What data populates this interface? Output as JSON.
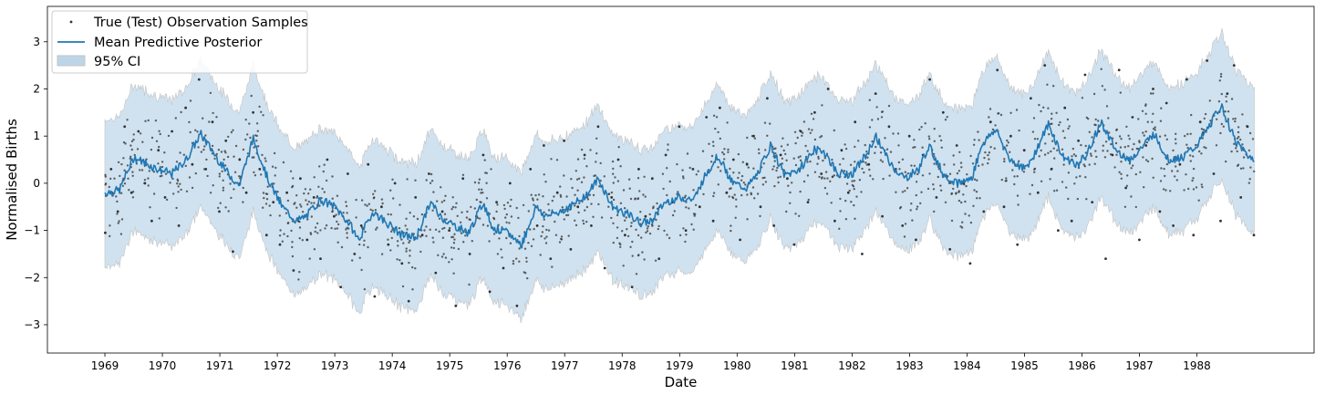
{
  "chart_data": {
    "type": "line",
    "title": "",
    "xlabel": "Date",
    "ylabel": "Normalised Births",
    "x_range": [
      "1969-01-01",
      "1988-12-31"
    ],
    "xlim": [
      "1968-01-01",
      "1990-01-15"
    ],
    "ylim": [
      -3.6,
      3.75
    ],
    "xticks": [
      "1969",
      "1970",
      "1971",
      "1972",
      "1973",
      "1974",
      "1975",
      "1976",
      "1977",
      "1978",
      "1979",
      "1980",
      "1981",
      "1982",
      "1983",
      "1984",
      "1985",
      "1986",
      "1987",
      "1988"
    ],
    "yticks": [
      -3,
      -2,
      -1,
      0,
      1,
      2,
      3
    ],
    "grid": false,
    "legend_position": "top-left",
    "colors": {
      "mean": "#1f77b4",
      "ci_fill": "#bcd6e8",
      "ci_edge": "#c4c4c4",
      "points": "#333333"
    },
    "legend": [
      {
        "label": "True (Test) Observation Samples",
        "kind": "points"
      },
      {
        "label": "Mean Predictive Posterior",
        "kind": "line"
      },
      {
        "label": "95% CI",
        "kind": "band"
      }
    ],
    "series": [
      {
        "name": "Mean Predictive Posterior",
        "x": [
          "1969-01",
          "1969-04",
          "1969-07",
          "1969-09",
          "1969-12",
          "1970-03",
          "1970-06",
          "1970-09",
          "1970-12",
          "1971-02",
          "1971-05",
          "1971-08",
          "1971-11",
          "1972-02",
          "1972-05",
          "1972-07",
          "1972-10",
          "1973-01",
          "1973-04",
          "1973-06",
          "1973-09",
          "1973-12",
          "1974-03",
          "1974-06",
          "1974-09",
          "1974-11",
          "1975-02",
          "1975-05",
          "1975-08",
          "1975-10",
          "1976-01",
          "1976-04",
          "1976-07",
          "1976-09",
          "1976-12",
          "1977-03",
          "1977-06",
          "1977-08",
          "1977-11",
          "1978-02",
          "1978-05",
          "1978-07",
          "1978-10",
          "1979-01",
          "1979-04",
          "1979-06",
          "1979-09",
          "1979-12",
          "1980-03",
          "1980-05",
          "1980-08",
          "1980-11",
          "1981-02",
          "1981-05",
          "1981-07",
          "1981-10",
          "1982-01",
          "1982-04",
          "1982-06",
          "1982-09",
          "1982-12",
          "1983-03",
          "1983-05",
          "1983-08",
          "1983-11",
          "1984-02",
          "1984-04",
          "1984-07",
          "1984-10",
          "1985-01",
          "1985-03",
          "1985-06",
          "1985-09",
          "1985-12",
          "1986-02",
          "1986-05",
          "1986-08",
          "1986-11",
          "1987-01",
          "1987-04",
          "1987-07",
          "1987-10",
          "1988-01",
          "1988-03",
          "1988-06",
          "1988-09",
          "1988-12"
        ],
        "values": [
          -0.2,
          -0.15,
          0.55,
          0.45,
          0.3,
          0.2,
          0.5,
          1.05,
          0.6,
          0.3,
          -0.05,
          0.95,
          0.1,
          -0.5,
          -0.8,
          -0.7,
          -0.35,
          -0.5,
          -0.85,
          -1.2,
          -0.6,
          -0.85,
          -1.1,
          -1.15,
          -0.4,
          -0.7,
          -0.9,
          -1.05,
          -0.4,
          -0.95,
          -1.05,
          -1.3,
          -0.5,
          -0.7,
          -0.6,
          -0.45,
          -0.2,
          0.1,
          -0.5,
          -0.65,
          -0.85,
          -0.8,
          -0.4,
          -0.3,
          -0.35,
          0.1,
          0.6,
          0.0,
          -0.1,
          0.15,
          0.8,
          0.15,
          0.3,
          0.7,
          0.7,
          0.2,
          0.2,
          0.6,
          1.0,
          0.4,
          0.1,
          0.3,
          0.8,
          0.2,
          0.0,
          0.1,
          0.8,
          1.15,
          0.5,
          0.3,
          0.6,
          1.25,
          0.55,
          0.4,
          0.6,
          1.3,
          0.7,
          0.5,
          0.7,
          1.05,
          0.5,
          0.55,
          0.8,
          1.1,
          1.65,
          0.9,
          0.55
        ]
      },
      {
        "name": "95% CI lower",
        "values": [
          -1.75,
          -1.7,
          -1.0,
          -1.1,
          -1.25,
          -1.35,
          -1.05,
          -0.5,
          -0.95,
          -1.25,
          -1.6,
          -0.6,
          -1.45,
          -2.05,
          -2.35,
          -2.25,
          -1.9,
          -2.05,
          -2.4,
          -2.75,
          -2.15,
          -2.4,
          -2.65,
          -2.7,
          -1.95,
          -2.25,
          -2.45,
          -2.6,
          -1.95,
          -2.5,
          -2.6,
          -2.85,
          -2.05,
          -2.25,
          -2.15,
          -2.0,
          -1.75,
          -1.45,
          -2.05,
          -2.2,
          -2.4,
          -2.35,
          -1.95,
          -1.85,
          -1.9,
          -1.45,
          -0.95,
          -1.55,
          -1.65,
          -1.4,
          -0.75,
          -1.4,
          -1.25,
          -0.85,
          -0.85,
          -1.35,
          -1.35,
          -0.95,
          -0.55,
          -1.15,
          -1.45,
          -1.25,
          -0.75,
          -1.35,
          -1.55,
          -1.45,
          -0.75,
          -0.4,
          -1.05,
          -1.25,
          -0.95,
          -0.3,
          -1.0,
          -1.15,
          -0.95,
          -0.25,
          -0.85,
          -1.05,
          -0.85,
          -0.5,
          -1.05,
          -1.0,
          -0.75,
          -0.45,
          0.1,
          -0.65,
          -1.0
        ]
      },
      {
        "name": "95% CI upper",
        "values": [
          1.35,
          1.4,
          2.1,
          2.0,
          1.85,
          1.75,
          2.05,
          2.6,
          2.15,
          1.85,
          1.5,
          2.5,
          1.65,
          1.05,
          0.75,
          0.85,
          1.2,
          1.05,
          0.7,
          0.35,
          0.95,
          0.7,
          0.45,
          0.4,
          1.15,
          0.85,
          0.65,
          0.5,
          1.15,
          0.6,
          0.5,
          0.25,
          1.05,
          0.85,
          0.95,
          1.1,
          1.35,
          1.65,
          1.05,
          0.9,
          0.7,
          0.75,
          1.15,
          1.25,
          1.2,
          1.65,
          2.15,
          1.55,
          1.45,
          1.7,
          2.35,
          1.7,
          1.85,
          2.25,
          2.25,
          1.75,
          1.75,
          2.15,
          2.55,
          1.95,
          1.65,
          1.85,
          2.35,
          1.75,
          1.55,
          1.65,
          2.35,
          2.7,
          2.05,
          1.85,
          2.15,
          2.8,
          2.1,
          1.95,
          2.15,
          2.85,
          2.25,
          2.05,
          2.25,
          2.6,
          2.05,
          2.1,
          2.35,
          2.65,
          3.2,
          2.45,
          2.1
        ]
      }
    ],
    "observations": {
      "name": "True (Test) Observation Samples",
      "x": [
        "1969-01-03",
        "1969-02-10",
        "1969-03-22",
        "1969-05-05",
        "1969-06-18",
        "1969-08-01",
        "1969-09-12",
        "1969-10-25",
        "1969-12-06",
        "1970-01-18",
        "1970-03-01",
        "1970-04-14",
        "1970-05-27",
        "1970-07-09",
        "1970-08-21",
        "1970-10-03",
        "1970-11-15",
        "1970-12-28",
        "1971-02-09",
        "1971-03-23",
        "1971-05-05",
        "1971-06-17",
        "1971-07-30",
        "1971-09-11",
        "1971-10-24",
        "1971-12-06",
        "1972-01-18",
        "1972-03-01",
        "1972-04-13",
        "1972-05-26",
        "1972-07-08",
        "1972-08-20",
        "1972-10-02",
        "1972-11-14",
        "1972-12-27",
        "1973-02-08",
        "1973-03-23",
        "1973-05-05",
        "1973-06-17",
        "1973-07-30",
        "1973-09-11",
        "1973-10-24",
        "1973-12-06",
        "1974-01-18",
        "1974-03-02",
        "1974-04-14",
        "1974-05-27",
        "1974-07-09",
        "1974-08-21",
        "1974-10-03",
        "1974-11-15",
        "1974-12-28",
        "1975-02-09",
        "1975-03-24",
        "1975-05-06",
        "1975-06-18",
        "1975-07-31",
        "1975-09-12",
        "1975-10-25",
        "1975-12-07",
        "1976-01-19",
        "1976-03-02",
        "1976-04-14",
        "1976-05-27",
        "1976-07-09",
        "1976-08-21",
        "1976-10-03",
        "1976-11-15",
        "1976-12-28",
        "1977-02-09",
        "1977-03-24",
        "1977-05-06",
        "1977-06-18",
        "1977-07-31",
        "1977-09-12",
        "1977-10-25",
        "1977-12-07",
        "1978-01-19",
        "1978-03-03",
        "1978-04-15",
        "1978-05-28",
        "1978-07-10",
        "1978-08-22",
        "1978-10-04",
        "1978-11-16",
        "1978-12-29",
        "1979-02-10",
        "1979-03-25",
        "1979-05-07",
        "1979-06-19",
        "1979-08-01",
        "1979-09-13",
        "1979-10-26",
        "1979-12-08",
        "1980-01-20",
        "1980-03-03",
        "1980-04-15",
        "1980-05-28",
        "1980-07-10",
        "1980-08-22",
        "1980-10-04",
        "1980-11-16",
        "1980-12-29",
        "1981-02-10",
        "1981-03-25",
        "1981-05-07",
        "1981-06-19",
        "1981-08-01",
        "1981-09-13",
        "1981-10-26",
        "1981-12-08",
        "1982-01-20",
        "1982-03-04",
        "1982-04-16",
        "1982-05-29",
        "1982-07-11",
        "1982-08-23",
        "1982-10-05",
        "1982-11-17",
        "1982-12-30",
        "1983-02-11",
        "1983-03-26",
        "1983-05-08",
        "1983-06-20",
        "1983-08-02",
        "1983-09-14",
        "1983-10-27",
        "1983-12-09",
        "1984-01-21",
        "1984-03-04",
        "1984-04-16",
        "1984-05-29",
        "1984-07-11",
        "1984-08-23",
        "1984-10-05",
        "1984-11-17",
        "1984-12-30",
        "1985-02-11",
        "1985-03-26",
        "1985-05-08",
        "1985-06-20",
        "1985-08-02",
        "1985-09-14",
        "1985-10-27",
        "1985-12-09",
        "1986-01-21",
        "1986-03-05",
        "1986-04-17",
        "1986-05-30",
        "1986-07-12",
        "1986-08-24",
        "1986-10-06",
        "1986-11-18",
        "1986-12-31",
        "1987-02-12",
        "1987-03-27",
        "1987-05-09",
        "1987-06-21",
        "1987-08-03",
        "1987-09-15",
        "1987-10-28",
        "1987-12-10",
        "1988-01-22",
        "1988-03-05",
        "1988-04-17",
        "1988-05-30",
        "1988-07-12",
        "1988-08-24",
        "1988-10-06",
        "1988-11-18",
        "1988-12-28"
      ],
      "values": [
        -1.05,
        0.3,
        -0.6,
        1.2,
        -0.2,
        1.1,
        0.0,
        -0.8,
        0.7,
        -0.3,
        1.1,
        -0.9,
        1.6,
        0.4,
        2.2,
        0.3,
        1.3,
        -0.6,
        0.9,
        -1.45,
        0.5,
        -0.2,
        1.5,
        0.3,
        -1.1,
        -0.4,
        -1.3,
        -0.2,
        -1.85,
        0.1,
        -1.2,
        -0.3,
        -1.6,
        0.5,
        -0.7,
        -2.2,
        0.2,
        -1.5,
        -0.9,
        0.4,
        -2.4,
        -0.5,
        -1.3,
        0.0,
        -1.7,
        -2.5,
        -0.3,
        -1.1,
        0.2,
        -1.9,
        -0.6,
        -1.0,
        -2.6,
        0.1,
        -1.5,
        -0.7,
        0.6,
        -2.3,
        -0.4,
        -1.8,
        0.0,
        -2.6,
        -1.2,
        0.3,
        -0.9,
        0.8,
        -1.6,
        -0.2,
        0.9,
        -1.4,
        -0.5,
        0.6,
        -0.9,
        1.2,
        -1.8,
        -0.3,
        0.5,
        -1.1,
        -2.2,
        0.3,
        -0.7,
        0.1,
        -1.6,
        0.6,
        -0.4,
        1.2,
        -1.0,
        0.3,
        -0.5,
        1.4,
        -0.8,
        1.6,
        -0.2,
        0.5,
        -1.2,
        0.4,
        1.0,
        -0.5,
        1.8,
        -0.9,
        0.6,
        0.1,
        -1.3,
        1.1,
        -0.4,
        1.5,
        0.2,
        2.0,
        -0.8,
        0.7,
        -0.2,
        1.3,
        -1.5,
        0.4,
        1.9,
        -0.7,
        1.2,
        0.3,
        -0.9,
        1.0,
        -1.2,
        0.6,
        2.2,
        -0.3,
        1.5,
        -1.4,
        0.8,
        0.0,
        -1.7,
        0.5,
        -0.6,
        1.3,
        2.4,
        -0.5,
        1.0,
        -1.3,
        0.7,
        1.8,
        -0.2,
        2.5,
        0.3,
        -1.0,
        1.6,
        -0.8,
        0.9,
        2.3,
        -0.4,
        1.1,
        -1.6,
        0.6,
        2.4,
        -0.1,
        1.4,
        -1.2,
        0.8,
        2.0,
        -0.6,
        1.7,
        -0.9,
        0.4,
        2.2,
        -1.1,
        1.3,
        2.6,
        0.2,
        -0.8,
        1.9,
        2.5,
        -0.3,
        1.2,
        -1.1
      ]
    }
  }
}
